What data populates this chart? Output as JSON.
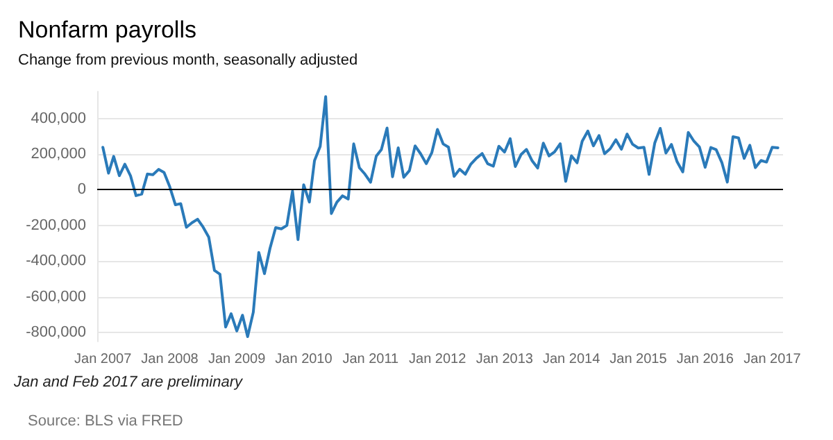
{
  "chart_data": {
    "type": "line",
    "title": "Nonfarm payrolls",
    "subtitle": "Change from previous month, seasonally adjusted",
    "annotations": [
      "Jan and Feb 2017 are preliminary",
      "Source: BLS via FRED"
    ],
    "x": [
      "2007-01",
      "2007-02",
      "2007-03",
      "2007-04",
      "2007-05",
      "2007-06",
      "2007-07",
      "2007-08",
      "2007-09",
      "2007-10",
      "2007-11",
      "2007-12",
      "2008-01",
      "2008-02",
      "2008-03",
      "2008-04",
      "2008-05",
      "2008-06",
      "2008-07",
      "2008-08",
      "2008-09",
      "2008-10",
      "2008-11",
      "2008-12",
      "2009-01",
      "2009-02",
      "2009-03",
      "2009-04",
      "2009-05",
      "2009-06",
      "2009-07",
      "2009-08",
      "2009-09",
      "2009-10",
      "2009-11",
      "2009-12",
      "2010-01",
      "2010-02",
      "2010-03",
      "2010-04",
      "2010-05",
      "2010-06",
      "2010-07",
      "2010-08",
      "2010-09",
      "2010-10",
      "2010-11",
      "2010-12",
      "2011-01",
      "2011-02",
      "2011-03",
      "2011-04",
      "2011-05",
      "2011-06",
      "2011-07",
      "2011-08",
      "2011-09",
      "2011-10",
      "2011-11",
      "2011-12",
      "2012-01",
      "2012-02",
      "2012-03",
      "2012-04",
      "2012-05",
      "2012-06",
      "2012-07",
      "2012-08",
      "2012-09",
      "2012-10",
      "2012-11",
      "2012-12",
      "2013-01",
      "2013-02",
      "2013-03",
      "2013-04",
      "2013-05",
      "2013-06",
      "2013-07",
      "2013-08",
      "2013-09",
      "2013-10",
      "2013-11",
      "2013-12",
      "2014-01",
      "2014-02",
      "2014-03",
      "2014-04",
      "2014-05",
      "2014-06",
      "2014-07",
      "2014-08",
      "2014-09",
      "2014-10",
      "2014-11",
      "2014-12",
      "2015-01",
      "2015-02",
      "2015-03",
      "2015-04",
      "2015-05",
      "2015-06",
      "2015-07",
      "2015-08",
      "2015-09",
      "2015-10",
      "2015-11",
      "2015-12",
      "2016-01",
      "2016-02",
      "2016-03",
      "2016-04",
      "2016-05",
      "2016-06",
      "2016-07",
      "2016-08",
      "2016-09",
      "2016-10",
      "2016-11",
      "2016-12",
      "2017-01",
      "2017-02"
    ],
    "series": [
      {
        "color": "#2a7ab9",
        "values": [
          238000,
          93000,
          187000,
          79000,
          143000,
          78000,
          -33000,
          -24000,
          88000,
          84000,
          114000,
          97000,
          17000,
          -84000,
          -78000,
          -210000,
          -185000,
          -165000,
          -209000,
          -266000,
          -452000,
          -473000,
          -769000,
          -695000,
          -791000,
          -703000,
          -823000,
          -686000,
          -351000,
          -470000,
          -329000,
          -212000,
          -219000,
          -200000,
          -7000,
          -279000,
          28000,
          -69000,
          163000,
          243000,
          522000,
          -133000,
          -70000,
          -34000,
          -52000,
          257000,
          123000,
          88000,
          42000,
          188000,
          225000,
          346000,
          73000,
          235000,
          70000,
          107000,
          246000,
          202000,
          146000,
          207000,
          338000,
          257000,
          239000,
          75000,
          115000,
          87000,
          143000,
          177000,
          203000,
          146000,
          132000,
          244000,
          211000,
          286000,
          130000,
          197000,
          226000,
          162000,
          122000,
          261000,
          190000,
          212000,
          258000,
          47000,
          190000,
          151000,
          272000,
          329000,
          246000,
          304000,
          202000,
          230000,
          280000,
          227000,
          312000,
          255000,
          234000,
          238000,
          86000,
          262000,
          344000,
          206000,
          254000,
          157000,
          100000,
          321000,
          272000,
          239000,
          126000,
          237000,
          225000,
          153000,
          43000,
          297000,
          291000,
          176000,
          249000,
          124000,
          164000,
          155000,
          238000,
          235000
        ]
      }
    ],
    "xlim": [
      "2006-12",
      "2017-03"
    ],
    "xticks": [
      {
        "value": "2007-01",
        "label": "Jan 2007"
      },
      {
        "value": "2008-01",
        "label": "Jan 2008"
      },
      {
        "value": "2009-01",
        "label": "Jan 2009"
      },
      {
        "value": "2010-01",
        "label": "Jan 2010"
      },
      {
        "value": "2011-01",
        "label": "Jan 2011"
      },
      {
        "value": "2012-01",
        "label": "Jan 2012"
      },
      {
        "value": "2013-01",
        "label": "Jan 2013"
      },
      {
        "value": "2014-01",
        "label": "Jan 2014"
      },
      {
        "value": "2015-01",
        "label": "Jan 2015"
      },
      {
        "value": "2016-01",
        "label": "Jan 2016"
      },
      {
        "value": "2017-01",
        "label": "Jan 2017"
      }
    ],
    "ylim": [
      -850000,
      550000
    ],
    "yticks": [
      {
        "value": -800000,
        "label": "-800,000"
      },
      {
        "value": -600000,
        "label": "-600,000"
      },
      {
        "value": -400000,
        "label": "-400,000"
      },
      {
        "value": -200000,
        "label": "-200,000"
      },
      {
        "value": 0,
        "label": "0"
      },
      {
        "value": 200000,
        "label": "200,000"
      },
      {
        "value": 400000,
        "label": "400,000"
      }
    ],
    "ref_lines": [
      {
        "axis": "y",
        "value": 0,
        "color": "#000000"
      }
    ],
    "grid": "y",
    "marker": "none",
    "line_style": "solid"
  }
}
